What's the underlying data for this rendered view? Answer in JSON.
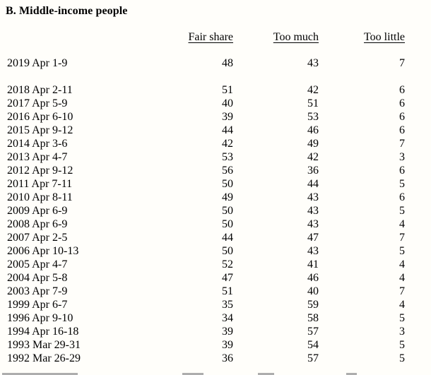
{
  "title": "B. Middle-income people",
  "colors": {
    "background": "#fffefa",
    "text": "#000000"
  },
  "table": {
    "columns": [
      "Fair share",
      "Too much",
      "Too little"
    ],
    "rows": [
      {
        "period": "2019 Apr 1-9",
        "values": [
          48,
          43,
          7
        ]
      },
      {
        "period": "2018 Apr 2-11",
        "values": [
          51,
          42,
          6
        ]
      },
      {
        "period": "2017 Apr 5-9",
        "values": [
          40,
          51,
          6
        ]
      },
      {
        "period": "2016 Apr 6-10",
        "values": [
          39,
          53,
          6
        ]
      },
      {
        "period": "2015 Apr 9-12",
        "values": [
          44,
          46,
          6
        ]
      },
      {
        "period": "2014 Apr 3-6",
        "values": [
          42,
          49,
          7
        ]
      },
      {
        "period": "2013 Apr 4-7",
        "values": [
          53,
          42,
          3
        ]
      },
      {
        "period": "2012 Apr 9-12",
        "values": [
          56,
          36,
          6
        ]
      },
      {
        "period": "2011 Apr 7-11",
        "values": [
          50,
          44,
          5
        ]
      },
      {
        "period": "2010 Apr 8-11",
        "values": [
          49,
          43,
          6
        ]
      },
      {
        "period": "2009 Apr 6-9",
        "values": [
          50,
          43,
          5
        ]
      },
      {
        "period": "2008 Apr 6-9",
        "values": [
          50,
          43,
          4
        ]
      },
      {
        "period": "2007 Apr 2-5",
        "values": [
          44,
          47,
          7
        ]
      },
      {
        "period": "2006 Apr 10-13",
        "values": [
          50,
          43,
          5
        ]
      },
      {
        "period": "2005 Apr 4-7",
        "values": [
          52,
          41,
          4
        ]
      },
      {
        "period": "2004 Apr 5-8",
        "values": [
          47,
          46,
          4
        ]
      },
      {
        "period": "2003 Apr 7-9",
        "values": [
          51,
          40,
          7
        ]
      },
      {
        "period": "1999 Apr 6-7",
        "values": [
          35,
          59,
          4
        ]
      },
      {
        "period": "1996 Apr 9-10",
        "values": [
          34,
          58,
          5
        ]
      },
      {
        "period": "1994 Apr 16-18",
        "values": [
          39,
          57,
          3
        ]
      },
      {
        "period": "1993 Mar 29-31",
        "values": [
          39,
          54,
          5
        ]
      },
      {
        "period": "1992 Mar 26-29",
        "values": [
          36,
          57,
          5
        ]
      }
    ]
  }
}
